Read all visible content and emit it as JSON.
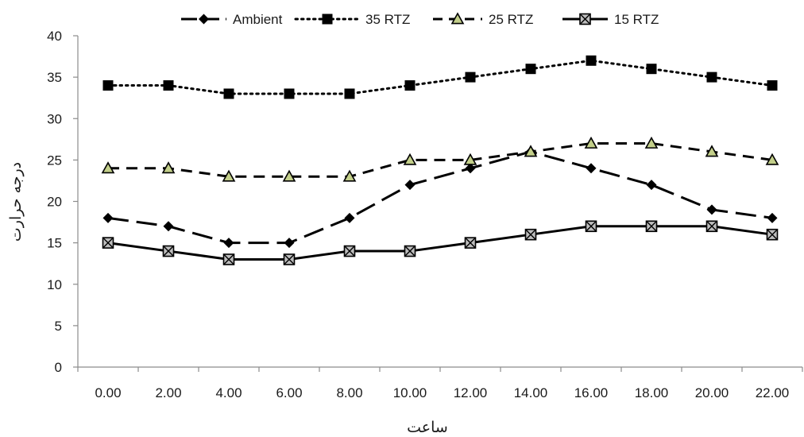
{
  "chart_data": {
    "type": "line",
    "xlabel": "ساعت",
    "ylabel": "درجه حرارت",
    "categories": [
      "0.00",
      "2.00",
      "4.00",
      "6.00",
      "8.00",
      "10.00",
      "12.00",
      "14.00",
      "16.00",
      "18.00",
      "20.00",
      "22.00"
    ],
    "ylim": [
      0,
      40
    ],
    "yticks": [
      0,
      5,
      10,
      15,
      20,
      25,
      30,
      35,
      40
    ],
    "grid": false,
    "legend_position": "top",
    "series": [
      {
        "name": "Ambient",
        "values": [
          18,
          17,
          15,
          15,
          18,
          22,
          24,
          26,
          24,
          22,
          19,
          18
        ],
        "line_style": "long-dash",
        "marker": "diamond"
      },
      {
        "name": "35 RTZ",
        "values": [
          34,
          34,
          33,
          33,
          33,
          34,
          35,
          36,
          37,
          36,
          35,
          34
        ],
        "line_style": "dotted",
        "marker": "square"
      },
      {
        "name": "25 RTZ",
        "values": [
          24,
          24,
          23,
          23,
          23,
          25,
          25,
          26,
          27,
          27,
          26,
          25
        ],
        "line_style": "dashed",
        "marker": "triangle"
      },
      {
        "name": "15 RTZ",
        "values": [
          15,
          14,
          13,
          13,
          14,
          14,
          15,
          16,
          17,
          17,
          17,
          16
        ],
        "line_style": "solid",
        "marker": "square-x"
      }
    ],
    "colors": {
      "line": "#000000",
      "triangle_fill": "#c3cf8a",
      "xbox_fill": "#bdbdbd"
    }
  }
}
